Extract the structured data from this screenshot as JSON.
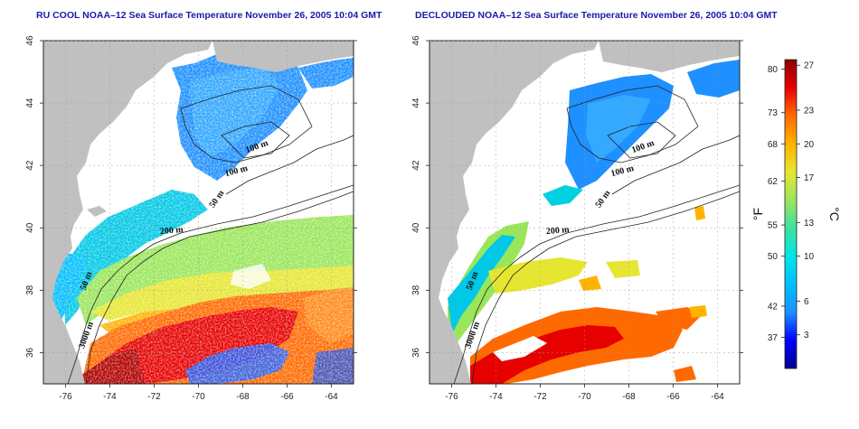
{
  "panels": [
    {
      "title": "RU COOL NOAA–12 Sea Surface Temperature November 26, 2005 10:04 GMT",
      "mode": "raw",
      "contour_labels": [
        "100 m",
        "100 m",
        "50 m",
        "200 m",
        "50 m",
        "3000 m"
      ]
    },
    {
      "title": "DECLOUDED NOAA–12 Sea Surface Temperature November 26, 2005 10:04 GMT",
      "mode": "declouded",
      "contour_labels": [
        "100 m",
        "100 m",
        "50 m",
        "200 m",
        "50 m",
        "3000 m"
      ]
    }
  ],
  "axes": {
    "lon_ticks": [
      "-76",
      "-74",
      "-72",
      "-70",
      "-68",
      "-66",
      "-64"
    ],
    "lat_ticks": [
      "36",
      "38",
      "40",
      "42",
      "44",
      "46"
    ],
    "lon_range": [
      -77,
      -63
    ],
    "lat_range": [
      35,
      46
    ]
  },
  "colorbar": {
    "fahrenheit_label": "°F",
    "celsius_label": "°C",
    "fahrenheit_ticks": [
      "80",
      "73",
      "68",
      "62",
      "55",
      "50",
      "42",
      "37"
    ],
    "celsius_ticks": [
      "27",
      "23",
      "20",
      "17",
      "13",
      "10",
      "6",
      "3"
    ],
    "range_c": [
      0,
      27.5
    ],
    "colors": [
      "#00008b",
      "#0000ff",
      "#1e90ff",
      "#00bfff",
      "#00e5e5",
      "#40e0a0",
      "#9ae65a",
      "#e6e632",
      "#ffb300",
      "#ff6a00",
      "#e60000",
      "#8b0000"
    ]
  },
  "colors": {
    "land": "#c0c0c0",
    "cloud": "#ffffff",
    "grid": "#999999",
    "title": "#1a1aa8"
  }
}
